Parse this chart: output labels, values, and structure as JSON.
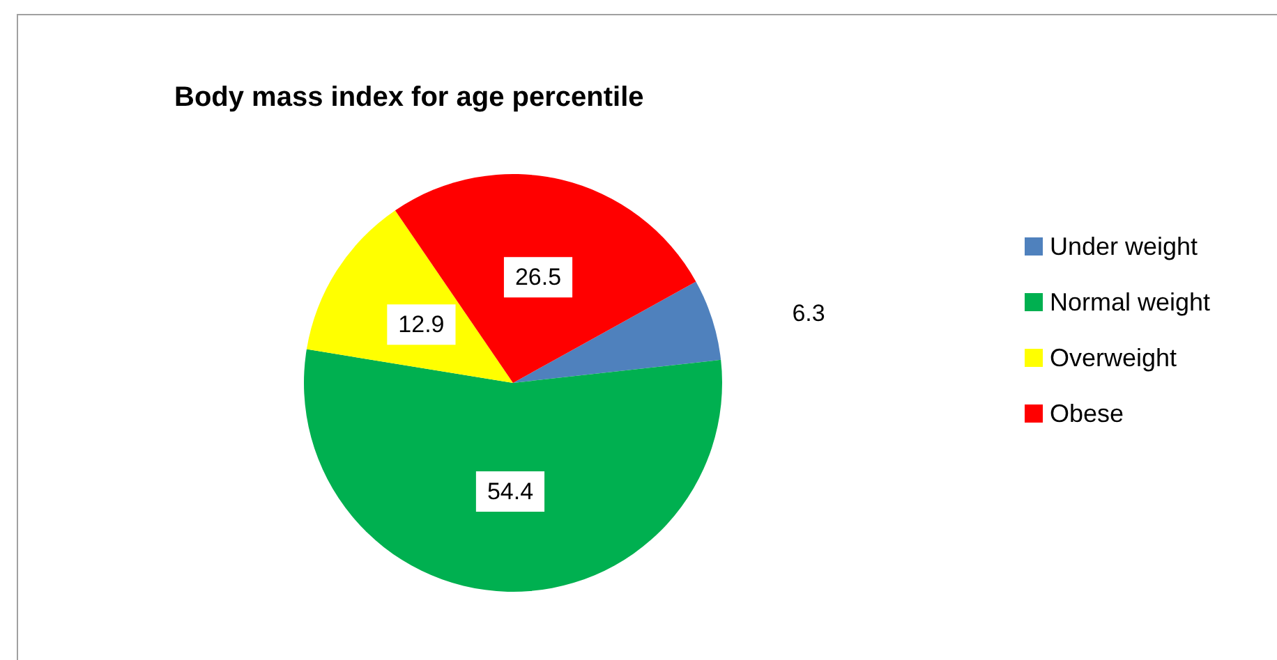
{
  "chart_data": {
    "type": "pie",
    "title": "Body mass index for age percentile",
    "categories": [
      "Under weight",
      "Normal weight",
      "Overweight",
      "Obese"
    ],
    "values": [
      6.3,
      54.4,
      12.9,
      26.5
    ],
    "colors": [
      "#4f81bd",
      "#00b050",
      "#ffff00",
      "#ff0000"
    ],
    "data_labels": true,
    "legend": "right"
  }
}
